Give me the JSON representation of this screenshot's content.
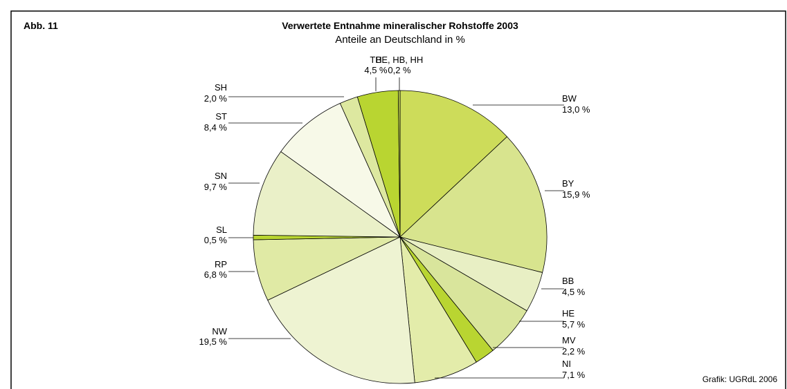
{
  "chart_data": {
    "type": "pie",
    "figure_number": "Abb. 11",
    "title": "Verwertete Entnahme mineralischer Rohstoffe 2003",
    "subtitle": "Anteile an Deutschland in %",
    "source": "Grafik: UGRdL 2006",
    "categories": [
      "BW",
      "BY",
      "BB",
      "HE",
      "MV",
      "NI",
      "NW",
      "RP",
      "SL",
      "SN",
      "ST",
      "SH",
      "TH",
      "BE, HB, HH"
    ],
    "values": [
      13.0,
      15.9,
      4.5,
      5.7,
      2.2,
      7.1,
      19.5,
      6.8,
      0.5,
      9.7,
      8.4,
      2.0,
      4.5,
      0.2
    ],
    "value_labels": [
      "13,0 %",
      "15,9 %",
      "4,5 %",
      "5,7 %",
      "2,2 %",
      "7,1 %",
      "19,5 %",
      "6,8 %",
      "0,5 %",
      "9,7 %",
      "8,4 %",
      "2,0 %",
      "4,5 %",
      "0,2 %"
    ],
    "colors": [
      "#cddc5a",
      "#d8e48e",
      "#e8efc4",
      "#d9e59c",
      "#b9d531",
      "#e3ecaa",
      "#eef3d2",
      "#e0eaa5",
      "#b9d531",
      "#eaf0c8",
      "#f7f9e8",
      "#dde8a0",
      "#b9d531",
      "#c8dd55"
    ]
  }
}
